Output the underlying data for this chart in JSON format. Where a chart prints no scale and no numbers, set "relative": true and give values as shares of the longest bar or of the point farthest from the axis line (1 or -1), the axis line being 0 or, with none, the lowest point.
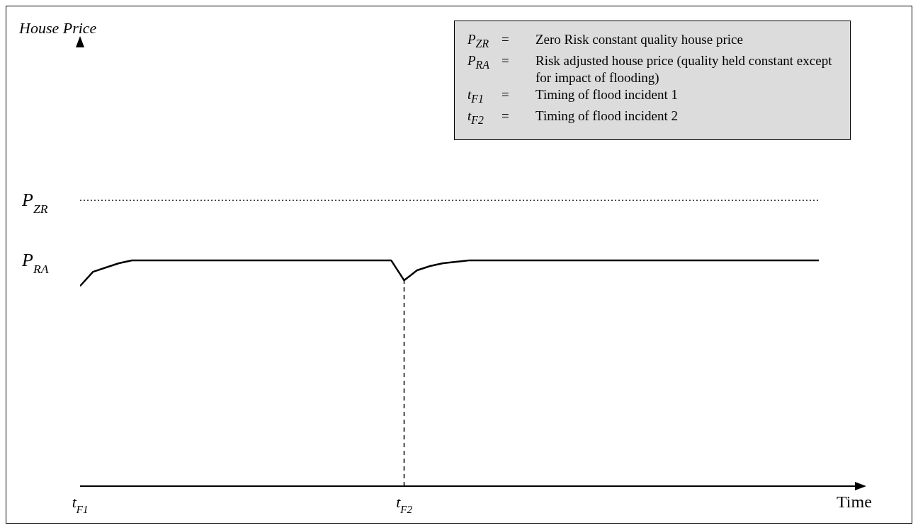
{
  "chart_data": {
    "type": "line",
    "relative": true,
    "xlabel": "Time",
    "categories": [
      "t$_{F1}$",
      null,
      null,
      null,
      null,
      null,
      null,
      null,
      null,
      null,
      null,
      null,
      null,
      null,
      null,
      null,
      null,
      null,
      null,
      null,
      null,
      null,
      null,
      null,
      null,
      "t$_{F2}$",
      null,
      null,
      null,
      null,
      null,
      null,
      null,
      null,
      null,
      null,
      null,
      null,
      null,
      null,
      null,
      null,
      null,
      null,
      null,
      null,
      null,
      null,
      null,
      null,
      null,
      null,
      null,
      null,
      null,
      null,
      null,
      null,
      null,
      null,
      null
    ],
    "series": [
      {
        "name": "P$_{ZR}$",
        "color": "#000000",
        "line_style": "dotted",
        "values": [
          1,
          1,
          1,
          1,
          1,
          1,
          1,
          1,
          1,
          1,
          1,
          1,
          1,
          1,
          1,
          1,
          1,
          1,
          1,
          1,
          1,
          1,
          1,
          1,
          1,
          1,
          1,
          1,
          1,
          1,
          1,
          1,
          1,
          1,
          1,
          1,
          1,
          1,
          1,
          1,
          1,
          1,
          1,
          1,
          1,
          1,
          1,
          1,
          1,
          1,
          1,
          1,
          1,
          1,
          1,
          1,
          1,
          1,
          null,
          null,
          null
        ]
      },
      {
        "name": "P$_{RA}$",
        "color": "#000000",
        "line_style": "solid",
        "values": [
          0.7,
          0.75,
          0.765,
          0.78,
          0.79,
          0.79,
          0.79,
          0.79,
          0.79,
          0.79,
          0.79,
          0.79,
          0.79,
          0.79,
          0.79,
          0.79,
          0.79,
          0.79,
          0.79,
          0.79,
          0.79,
          0.79,
          0.79,
          0.79,
          0.79,
          0.72,
          0.755,
          0.77,
          0.78,
          0.785,
          0.79,
          0.79,
          0.79,
          0.79,
          0.79,
          0.79,
          0.79,
          0.79,
          0.79,
          0.79,
          0.79,
          0.79,
          0.79,
          0.79,
          0.79,
          0.79,
          0.79,
          0.79,
          0.79,
          0.79,
          0.79,
          0.79,
          0.79,
          0.79,
          0.79,
          0.79,
          0.79,
          0.79,
          null,
          null,
          null
        ]
      }
    ],
    "ref_lines": [
      {
        "axis": "x",
        "value": "t$_{F2}$",
        "line_style": "dashed",
        "color": "#000000"
      }
    ],
    "annotations": [
      "House Price",
      "P$_{ZR}$ = Zero Risk constant quality house price",
      "P$_{RA}$ = Risk adjusted house price (quality held constant except for impact of flooding)",
      "t$_{F1}$ = Timing of flood incident 1",
      "t$_{F2}$ = Timing of flood incident 2"
    ]
  }
}
